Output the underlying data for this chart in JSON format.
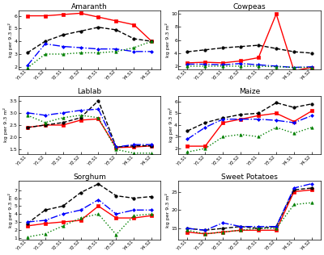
{
  "x_labels": [
    "Y1.S1",
    "Y1.S2",
    "Y2.S1",
    "Y2.S2",
    "Y3.S1",
    "Y3.S2",
    "Y4.S1",
    "Y4.S2"
  ],
  "x_vals": [
    0,
    1,
    2,
    3,
    4,
    5,
    6,
    7
  ],
  "subplots": [
    {
      "title": "Amaranth",
      "ylim": [
        1.8,
        6.4
      ],
      "yticks": [
        2,
        3,
        4,
        5,
        6
      ],
      "series": [
        {
          "color": "red",
          "ls": "-",
          "marker": "s",
          "ms": 2.5,
          "lw": 1.0,
          "vals": [
            6.0,
            6.0,
            6.1,
            6.2,
            5.9,
            5.6,
            5.3,
            4.0
          ]
        },
        {
          "color": "black",
          "ls": "--",
          "marker": "o",
          "ms": 2.5,
          "lw": 1.0,
          "vals": [
            3.1,
            4.0,
            4.5,
            4.8,
            5.1,
            4.9,
            4.2,
            4.0
          ]
        },
        {
          "color": "blue",
          "ls": "-.",
          "marker": "D",
          "ms": 2.0,
          "lw": 1.0,
          "vals": [
            2.1,
            3.8,
            3.6,
            3.5,
            3.4,
            3.4,
            3.2,
            3.2
          ]
        },
        {
          "color": "green",
          "ls": ":",
          "marker": "^",
          "ms": 2.5,
          "lw": 1.0,
          "vals": [
            1.9,
            3.0,
            3.0,
            3.1,
            3.1,
            3.2,
            3.5,
            4.0
          ]
        }
      ]
    },
    {
      "title": "Cowpeas",
      "ylim": [
        1.5,
        10.5
      ],
      "yticks": [
        2,
        4,
        6,
        8,
        10
      ],
      "series": [
        {
          "color": "red",
          "ls": "-",
          "marker": "s",
          "ms": 2.5,
          "lw": 1.0,
          "vals": [
            2.5,
            2.6,
            2.5,
            2.8,
            3.3,
            10.0,
            1.3,
            1.8
          ]
        },
        {
          "color": "black",
          "ls": "--",
          "marker": "o",
          "ms": 2.5,
          "lw": 1.0,
          "vals": [
            4.2,
            4.5,
            4.8,
            5.0,
            5.2,
            4.7,
            4.2,
            4.0
          ]
        },
        {
          "color": "blue",
          "ls": "-.",
          "marker": "D",
          "ms": 2.0,
          "lw": 1.0,
          "vals": [
            2.3,
            2.3,
            2.2,
            2.4,
            2.2,
            2.0,
            1.8,
            1.9
          ]
        },
        {
          "color": "green",
          "ls": ":",
          "marker": "^",
          "ms": 2.5,
          "lw": 1.0,
          "vals": [
            2.0,
            2.0,
            2.0,
            2.0,
            2.0,
            1.9,
            1.8,
            1.8
          ]
        }
      ]
    },
    {
      "title": "Lablab",
      "ylim": [
        1.3,
        3.7
      ],
      "yticks": [
        1.5,
        2.0,
        2.5,
        3.0,
        3.5
      ],
      "series": [
        {
          "color": "red",
          "ls": "-",
          "marker": "s",
          "ms": 2.5,
          "lw": 1.0,
          "vals": [
            2.4,
            2.5,
            2.5,
            2.7,
            2.75,
            1.58,
            1.6,
            1.65
          ]
        },
        {
          "color": "black",
          "ls": "--",
          "marker": "o",
          "ms": 2.5,
          "lw": 1.0,
          "vals": [
            2.4,
            2.5,
            2.6,
            2.8,
            3.5,
            1.6,
            1.65,
            1.65
          ]
        },
        {
          "color": "blue",
          "ls": "-.",
          "marker": "D",
          "ms": 2.0,
          "lw": 1.0,
          "vals": [
            3.0,
            2.9,
            3.0,
            3.1,
            3.15,
            1.6,
            1.7,
            1.7
          ]
        },
        {
          "color": "green",
          "ls": ":",
          "marker": "^",
          "ms": 2.5,
          "lw": 1.0,
          "vals": [
            2.9,
            2.6,
            2.8,
            2.9,
            2.8,
            1.5,
            1.35,
            1.35
          ]
        }
      ]
    },
    {
      "title": "Maize",
      "ylim": [
        1.5,
        6.5
      ],
      "yticks": [
        2,
        3,
        4,
        5,
        6
      ],
      "series": [
        {
          "color": "red",
          "ls": "-",
          "marker": "s",
          "ms": 2.5,
          "lw": 1.0,
          "vals": [
            2.2,
            2.2,
            4.2,
            4.5,
            4.8,
            5.0,
            4.3,
            5.2
          ]
        },
        {
          "color": "black",
          "ls": "--",
          "marker": "o",
          "ms": 2.5,
          "lw": 1.0,
          "vals": [
            3.5,
            4.2,
            4.6,
            4.9,
            5.0,
            5.9,
            5.5,
            5.8
          ]
        },
        {
          "color": "blue",
          "ls": "-.",
          "marker": "D",
          "ms": 2.0,
          "lw": 1.0,
          "vals": [
            2.8,
            3.8,
            4.5,
            4.5,
            4.5,
            4.4,
            4.2,
            4.8
          ]
        },
        {
          "color": "green",
          "ls": ":",
          "marker": "^",
          "ms": 2.5,
          "lw": 1.0,
          "vals": [
            1.7,
            2.0,
            3.0,
            3.2,
            3.0,
            3.8,
            3.3,
            3.8
          ]
        }
      ]
    },
    {
      "title": "Sorghum",
      "ylim": [
        0.8,
        8.2
      ],
      "yticks": [
        1,
        2,
        3,
        4,
        5,
        6,
        7
      ],
      "series": [
        {
          "color": "red",
          "ls": "-",
          "marker": "s",
          "ms": 2.5,
          "lw": 1.0,
          "vals": [
            2.5,
            2.8,
            3.0,
            3.2,
            5.0,
            3.5,
            3.5,
            3.8
          ]
        },
        {
          "color": "black",
          "ls": "--",
          "marker": "o",
          "ms": 2.5,
          "lw": 1.0,
          "vals": [
            2.8,
            4.5,
            5.0,
            6.7,
            7.8,
            6.3,
            6.0,
            6.2
          ]
        },
        {
          "color": "blue",
          "ls": "-.",
          "marker": "D",
          "ms": 2.0,
          "lw": 1.0,
          "vals": [
            3.0,
            3.2,
            4.0,
            4.5,
            5.8,
            4.0,
            4.5,
            4.5
          ]
        },
        {
          "color": "green",
          "ls": ":",
          "marker": "^",
          "ms": 2.5,
          "lw": 1.0,
          "vals": [
            1.1,
            1.5,
            2.5,
            3.5,
            4.0,
            1.4,
            3.8,
            4.0
          ]
        }
      ]
    },
    {
      "title": "Sweet Potatoes",
      "ylim": [
        12.0,
        28.0
      ],
      "yticks": [
        15,
        20,
        25
      ],
      "series": [
        {
          "color": "red",
          "ls": "-",
          "marker": "s",
          "ms": 2.5,
          "lw": 1.0,
          "vals": [
            14.0,
            13.5,
            14.0,
            14.5,
            14.5,
            14.5,
            25.0,
            25.5
          ]
        },
        {
          "color": "black",
          "ls": "--",
          "marker": "o",
          "ms": 2.5,
          "lw": 1.0,
          "vals": [
            15.0,
            14.5,
            15.0,
            15.5,
            15.0,
            15.5,
            25.5,
            26.0
          ]
        },
        {
          "color": "blue",
          "ls": "-.",
          "marker": "D",
          "ms": 2.0,
          "lw": 1.0,
          "vals": [
            15.0,
            14.5,
            16.5,
            15.5,
            15.5,
            15.5,
            26.0,
            27.2
          ]
        },
        {
          "color": "green",
          "ls": ":",
          "marker": "^",
          "ms": 2.5,
          "lw": 1.0,
          "vals": [
            14.5,
            13.5,
            14.0,
            14.5,
            15.0,
            15.0,
            21.5,
            22.0
          ]
        }
      ]
    }
  ],
  "ylabel": "kg per 9.3 m²",
  "bg": "#ffffff"
}
